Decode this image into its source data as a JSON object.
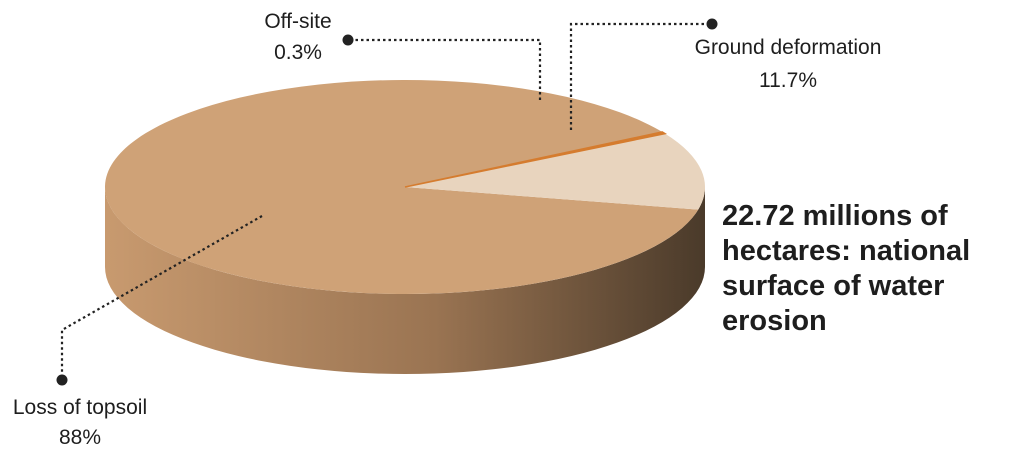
{
  "chart_data": {
    "type": "pie",
    "style": "3d",
    "categories": [
      "Loss of topsoil",
      "Ground deformation",
      "Off-site"
    ],
    "values": [
      88,
      11.7,
      0.3
    ],
    "value_labels": [
      "88%",
      "11.7%",
      "0.3%"
    ],
    "colors": [
      "#cfa277",
      "#e8d4be",
      "#d57c2f"
    ],
    "side_colors": {
      "light": "#c89a6f",
      "mid": "#9a7452",
      "dark": "#4a3a2a"
    },
    "leader_color": "#222222",
    "annotation": {
      "lines": [
        "22.72 millions of",
        "hectares: national",
        "surface of water",
        "erosion"
      ]
    }
  }
}
